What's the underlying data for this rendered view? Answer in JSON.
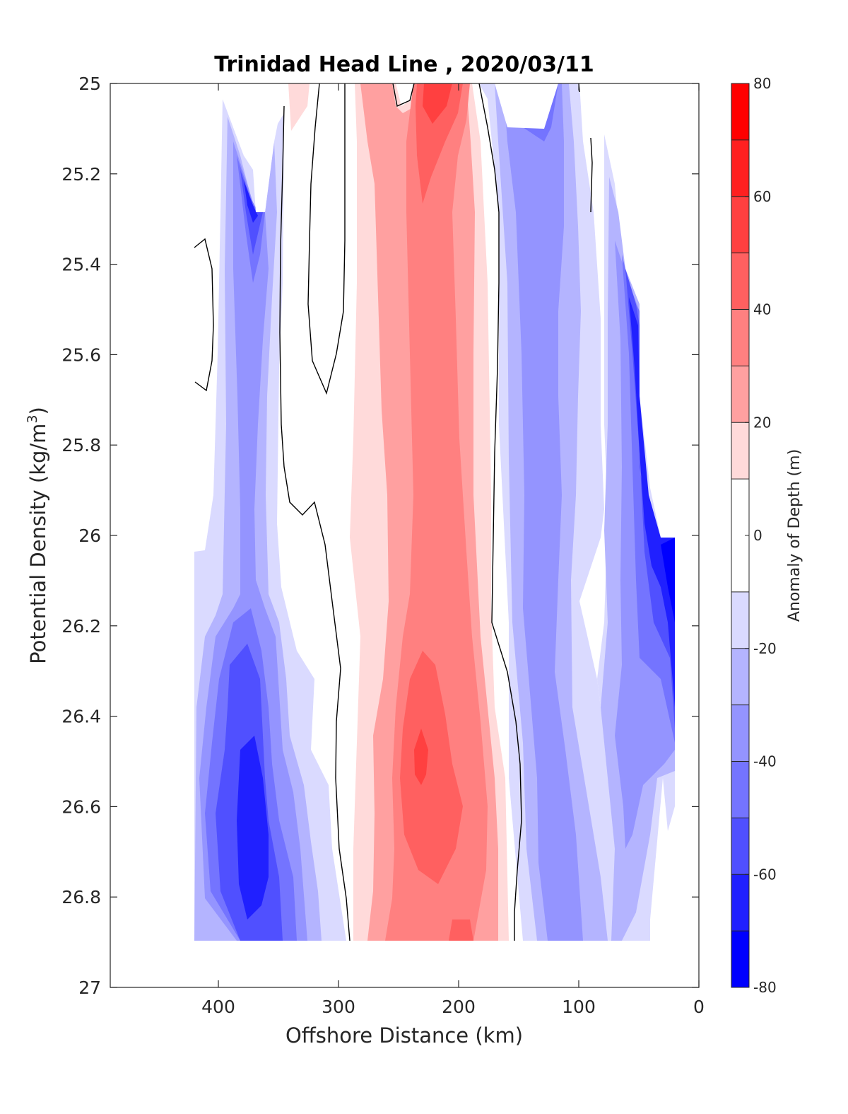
{
  "chart_data": {
    "type": "heatmap",
    "title": "Trinidad Head Line , 2020/03/11",
    "xlabel": "Offshore Distance (km)",
    "ylabel_main": "Potential Density (kg/m",
    "ylabel_sup": "3",
    "ylabel_end": ")",
    "xlim": [
      490,
      0
    ],
    "ylim": [
      25,
      27
    ],
    "x_reversed": true,
    "y_reversed": true,
    "xticks": [
      400,
      300,
      200,
      100,
      0
    ],
    "xtick_labels": [
      "400",
      "300",
      "200",
      "100",
      "0"
    ],
    "yticks": [
      25,
      25.2,
      25.4,
      25.6,
      25.8,
      26,
      26.2,
      26.4,
      26.6,
      26.8,
      27
    ],
    "ytick_labels": [
      "25",
      "25.2",
      "25.4",
      "25.6",
      "25.8",
      "26",
      "26.2",
      "26.4",
      "26.6",
      "26.8",
      "27"
    ],
    "colorbar": {
      "label": "Anomaly of Depth (m)",
      "range": [
        -80,
        80
      ],
      "ticks": [
        80,
        60,
        40,
        20,
        0,
        -20,
        -40,
        -60,
        -80
      ],
      "tick_labels": [
        "80",
        "60",
        "40",
        "20",
        "0",
        "-20",
        "-40",
        "-60",
        "-80"
      ],
      "levels": [
        {
          "min": 70,
          "max": 80,
          "color": "#ff0000"
        },
        {
          "min": 60,
          "max": 70,
          "color": "#ff2020"
        },
        {
          "min": 50,
          "max": 60,
          "color": "#ff4040"
        },
        {
          "min": 40,
          "max": 50,
          "color": "#ff6060"
        },
        {
          "min": 30,
          "max": 40,
          "color": "#ff8080"
        },
        {
          "min": 20,
          "max": 30,
          "color": "#ffa0a0"
        },
        {
          "min": 10,
          "max": 20,
          "color": "#ffdada"
        },
        {
          "min": -10,
          "max": 10,
          "color": "#ffffff"
        },
        {
          "min": -20,
          "max": -10,
          "color": "#dadaff"
        },
        {
          "min": -30,
          "max": -20,
          "color": "#b4b4ff"
        },
        {
          "min": -40,
          "max": -30,
          "color": "#9494ff"
        },
        {
          "min": -50,
          "max": -40,
          "color": "#7474ff"
        },
        {
          "min": -60,
          "max": -50,
          "color": "#5050ff"
        },
        {
          "min": -70,
          "max": -60,
          "color": "#2020ff"
        },
        {
          "min": -80,
          "max": -70,
          "color": "#0000ff"
        }
      ]
    },
    "approx_field_extent": {
      "x": [
        20,
        420
      ],
      "y": [
        25,
        26.9
      ]
    },
    "features": [
      {
        "desc": "negative anomaly core",
        "x": 370,
        "y": 26.55,
        "value": -65
      },
      {
        "desc": "negative anomaly core",
        "x": 370,
        "y": 26.8,
        "value": -65
      },
      {
        "desc": "negative anomaly",
        "x": 375,
        "y": 25.25,
        "value": -60
      },
      {
        "desc": "positive anomaly core",
        "x": 230,
        "y": 26.5,
        "value": 55
      },
      {
        "desc": "positive anomaly",
        "x": 215,
        "y": 25.05,
        "value": 40
      },
      {
        "desc": "negative anomaly coast",
        "x": 30,
        "y": 26.1,
        "value": -70
      }
    ]
  }
}
